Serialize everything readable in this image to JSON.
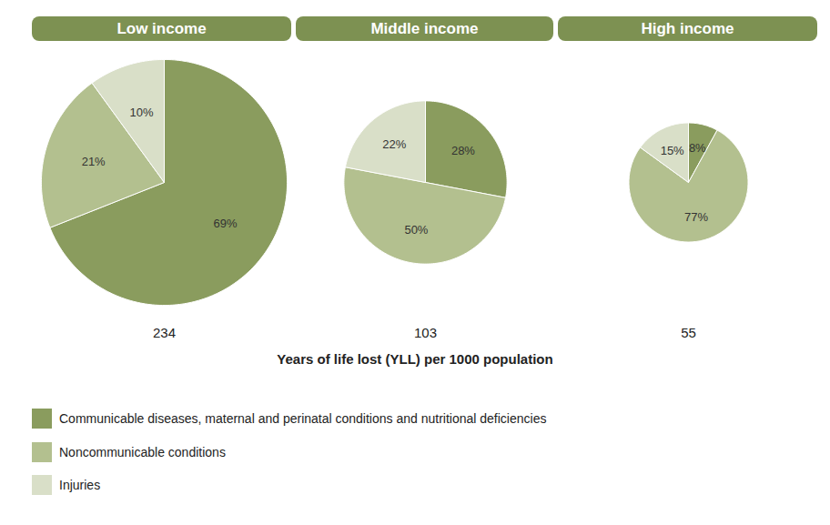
{
  "chart_data": {
    "type": "pie",
    "xlabel": "Years of life lost (YLL) per 1000 population",
    "categories": [
      "Communicable diseases, maternal and perinatal conditions and nutritional deficiencies",
      "Noncommunicable conditions",
      "Injuries"
    ],
    "colors": [
      "#8a9c5e",
      "#b3c08f",
      "#d9dfc8"
    ],
    "groups": [
      {
        "name": "Low income",
        "total": 234,
        "values": [
          69,
          21,
          10
        ],
        "value_labels": [
          "69%",
          "21%",
          "10%"
        ]
      },
      {
        "name": "Middle income",
        "total": 103,
        "values": [
          28,
          50,
          22
        ],
        "value_labels": [
          "28%",
          "50%",
          "22%"
        ]
      },
      {
        "name": "High income",
        "total": 55,
        "values": [
          8,
          77,
          15
        ],
        "value_labels": [
          "8%",
          "77%",
          "15%"
        ]
      }
    ],
    "data_labels": true,
    "legend": "bottom"
  }
}
